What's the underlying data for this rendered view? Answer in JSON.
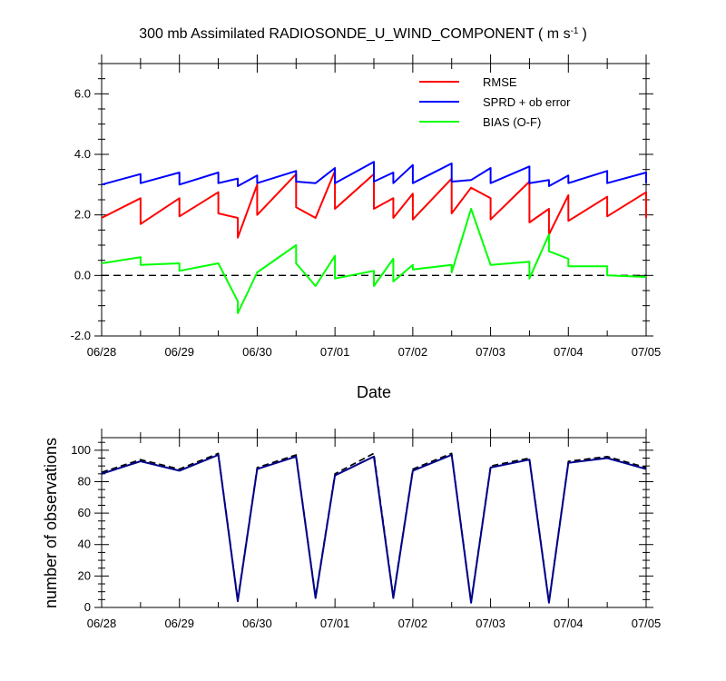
{
  "chart_data": [
    {
      "type": "line",
      "title": "300 mb Assimilated RADIOSONDE_U_WIND_COMPONENT ( m s",
      "title_units_exponent": "-1",
      "title_close": ")",
      "xlabel": "Date",
      "ylabel": "",
      "x_tick_labels": [
        "06/28",
        "06/29",
        "06/30",
        "07/01",
        "07/02",
        "07/03",
        "07/04",
        "07/05"
      ],
      "xlim": [
        0,
        7
      ],
      "ylim": [
        -2,
        7
      ],
      "y_tick_values": [
        -2,
        0,
        2,
        4,
        6
      ],
      "y_tick_labels": [
        "-2.0",
        "0.0",
        "2.0",
        "4.0",
        "6.0"
      ],
      "reference_line_y": 0,
      "legend_position": "top-right",
      "series": [
        {
          "name": "RMSE",
          "color": "#ff0000",
          "points": [
            [
              0.0,
              1.9
            ],
            [
              0.5,
              2.55
            ],
            [
              0.5,
              1.7
            ],
            [
              1.0,
              2.55
            ],
            [
              1.0,
              1.95
            ],
            [
              1.5,
              2.75
            ],
            [
              1.5,
              2.05
            ],
            [
              1.75,
              1.9
            ],
            [
              1.75,
              1.25
            ],
            [
              2.0,
              3.0
            ],
            [
              2.0,
              2.0
            ],
            [
              2.5,
              3.35
            ],
            [
              2.5,
              2.25
            ],
            [
              2.75,
              1.9
            ],
            [
              3.0,
              3.45
            ],
            [
              3.0,
              2.2
            ],
            [
              3.5,
              3.35
            ],
            [
              3.5,
              2.2
            ],
            [
              3.75,
              2.55
            ],
            [
              3.75,
              1.9
            ],
            [
              4.0,
              2.7
            ],
            [
              4.0,
              1.85
            ],
            [
              4.5,
              3.2
            ],
            [
              4.5,
              2.05
            ],
            [
              4.75,
              2.9
            ],
            [
              5.0,
              2.55
            ],
            [
              5.0,
              1.85
            ],
            [
              5.5,
              3.1
            ],
            [
              5.5,
              1.75
            ],
            [
              5.75,
              2.2
            ],
            [
              5.75,
              1.35
            ],
            [
              6.0,
              2.65
            ],
            [
              6.0,
              1.8
            ],
            [
              6.5,
              2.6
            ],
            [
              6.5,
              1.95
            ],
            [
              7.0,
              2.75
            ],
            [
              7.0,
              1.9
            ]
          ]
        },
        {
          "name": "SPRD + ob error",
          "color": "#0000ff",
          "points": [
            [
              0.0,
              3.0
            ],
            [
              0.5,
              3.35
            ],
            [
              0.5,
              3.05
            ],
            [
              1.0,
              3.4
            ],
            [
              1.0,
              3.0
            ],
            [
              1.5,
              3.4
            ],
            [
              1.5,
              3.05
            ],
            [
              1.75,
              3.2
            ],
            [
              1.75,
              2.95
            ],
            [
              2.0,
              3.3
            ],
            [
              2.0,
              3.05
            ],
            [
              2.5,
              3.45
            ],
            [
              2.5,
              3.1
            ],
            [
              2.75,
              3.05
            ],
            [
              3.0,
              3.55
            ],
            [
              3.0,
              3.05
            ],
            [
              3.5,
              3.75
            ],
            [
              3.5,
              3.1
            ],
            [
              3.75,
              3.4
            ],
            [
              3.75,
              3.05
            ],
            [
              4.0,
              3.65
            ],
            [
              4.0,
              3.05
            ],
            [
              4.5,
              3.7
            ],
            [
              4.5,
              3.1
            ],
            [
              4.75,
              3.15
            ],
            [
              5.0,
              3.55
            ],
            [
              5.0,
              3.05
            ],
            [
              5.5,
              3.6
            ],
            [
              5.5,
              3.05
            ],
            [
              5.75,
              3.15
            ],
            [
              5.75,
              2.95
            ],
            [
              6.0,
              3.3
            ],
            [
              6.0,
              3.05
            ],
            [
              6.5,
              3.45
            ],
            [
              6.5,
              3.05
            ],
            [
              7.0,
              3.4
            ],
            [
              7.0,
              3.05
            ]
          ]
        },
        {
          "name": "BIAS (O-F)",
          "color": "#00ff00",
          "points": [
            [
              0.0,
              0.4
            ],
            [
              0.5,
              0.6
            ],
            [
              0.5,
              0.35
            ],
            [
              1.0,
              0.4
            ],
            [
              1.0,
              0.15
            ],
            [
              1.5,
              0.4
            ],
            [
              1.75,
              -0.85
            ],
            [
              1.75,
              -1.25
            ],
            [
              2.0,
              0.1
            ],
            [
              2.5,
              1.0
            ],
            [
              2.5,
              0.4
            ],
            [
              2.75,
              -0.35
            ],
            [
              3.0,
              0.65
            ],
            [
              3.0,
              -0.1
            ],
            [
              3.5,
              0.15
            ],
            [
              3.5,
              -0.35
            ],
            [
              3.75,
              0.55
            ],
            [
              3.75,
              -0.2
            ],
            [
              4.0,
              0.35
            ],
            [
              4.0,
              0.2
            ],
            [
              4.5,
              0.35
            ],
            [
              4.5,
              0.1
            ],
            [
              4.75,
              2.2
            ],
            [
              5.0,
              0.35
            ],
            [
              5.5,
              0.45
            ],
            [
              5.5,
              -0.1
            ],
            [
              5.75,
              1.35
            ],
            [
              5.75,
              0.8
            ],
            [
              6.0,
              0.55
            ],
            [
              6.0,
              0.3
            ],
            [
              6.5,
              0.3
            ],
            [
              6.5,
              0.0
            ],
            [
              7.0,
              -0.05
            ]
          ]
        }
      ]
    },
    {
      "type": "line",
      "title": "",
      "xlabel": "",
      "ylabel": "number of observations",
      "x_tick_labels": [
        "06/28",
        "06/29",
        "06/30",
        "07/01",
        "07/02",
        "07/03",
        "07/04",
        "07/05"
      ],
      "xlim": [
        0,
        7
      ],
      "ylim": [
        0,
        108
      ],
      "y_tick_values": [
        0,
        20,
        40,
        60,
        80,
        100
      ],
      "y_tick_labels": [
        "0",
        "20",
        "40",
        "60",
        "80",
        "100"
      ],
      "series": [
        {
          "name": "observations (dashed)",
          "color": "#000000",
          "style": "dashed",
          "points": [
            [
              0.0,
              86
            ],
            [
              0.5,
              94
            ],
            [
              1.0,
              88
            ],
            [
              1.5,
              98
            ],
            [
              1.75,
              5
            ],
            [
              2.0,
              89
            ],
            [
              2.5,
              97
            ],
            [
              2.75,
              7
            ],
            [
              3.0,
              85
            ],
            [
              3.5,
              98
            ],
            [
              3.75,
              7
            ],
            [
              4.0,
              88
            ],
            [
              4.5,
              98
            ],
            [
              4.75,
              4
            ],
            [
              5.0,
              90
            ],
            [
              5.5,
              95
            ],
            [
              5.75,
              4
            ],
            [
              6.0,
              93
            ],
            [
              6.5,
              96
            ],
            [
              7.0,
              89
            ]
          ]
        },
        {
          "name": "observations (solid)",
          "color": "#00008b",
          "style": "solid",
          "points": [
            [
              0.0,
              85
            ],
            [
              0.5,
              93
            ],
            [
              1.0,
              87
            ],
            [
              1.5,
              97
            ],
            [
              1.75,
              4
            ],
            [
              2.0,
              88
            ],
            [
              2.5,
              96
            ],
            [
              2.75,
              6
            ],
            [
              3.0,
              84
            ],
            [
              3.5,
              96
            ],
            [
              3.75,
              6
            ],
            [
              4.0,
              87
            ],
            [
              4.5,
              97
            ],
            [
              4.75,
              3
            ],
            [
              5.0,
              89
            ],
            [
              5.5,
              94
            ],
            [
              5.75,
              3
            ],
            [
              6.0,
              92
            ],
            [
              6.5,
              95
            ],
            [
              7.0,
              88
            ]
          ]
        }
      ]
    }
  ]
}
